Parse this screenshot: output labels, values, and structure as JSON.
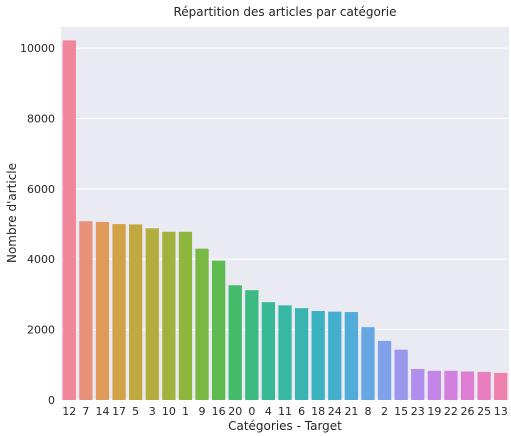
{
  "chart_data": {
    "type": "bar",
    "title": "Répartition des articles par catégorie",
    "xlabel": "Catégories - Target",
    "ylabel": "Nombre d'article",
    "ylim": [
      0,
      10600
    ],
    "yticks": [
      0,
      2000,
      4000,
      6000,
      8000,
      10000
    ],
    "grid": true,
    "categories": [
      "12",
      "7",
      "14",
      "17",
      "5",
      "3",
      "10",
      "1",
      "9",
      "16",
      "20",
      "0",
      "4",
      "11",
      "6",
      "18",
      "24",
      "21",
      "8",
      "2",
      "15",
      "23",
      "19",
      "22",
      "26",
      "25",
      "13"
    ],
    "values": [
      10220,
      5080,
      5060,
      5000,
      4990,
      4880,
      4780,
      4780,
      4300,
      3960,
      3260,
      3120,
      2780,
      2690,
      2610,
      2530,
      2510,
      2500,
      2070,
      1680,
      1430,
      880,
      830,
      830,
      810,
      800,
      770
    ],
    "colors": [
      "#f0879a",
      "#e8927a",
      "#df9a5c",
      "#d2a246",
      "#c2a840",
      "#b2ad3d",
      "#a0b23c",
      "#8db63d",
      "#78b943",
      "#5dbb4f",
      "#43bb6a",
      "#3bbb82",
      "#38b995",
      "#37b7a5",
      "#39b4b3",
      "#3cb2c0",
      "#44afcd",
      "#52acd9",
      "#66a7e3",
      "#7fa0ea",
      "#9a97ed",
      "#b18ded",
      "#c485e8",
      "#d27fdf",
      "#de7dd1",
      "#e87ec0",
      "#ef82ad"
    ]
  }
}
